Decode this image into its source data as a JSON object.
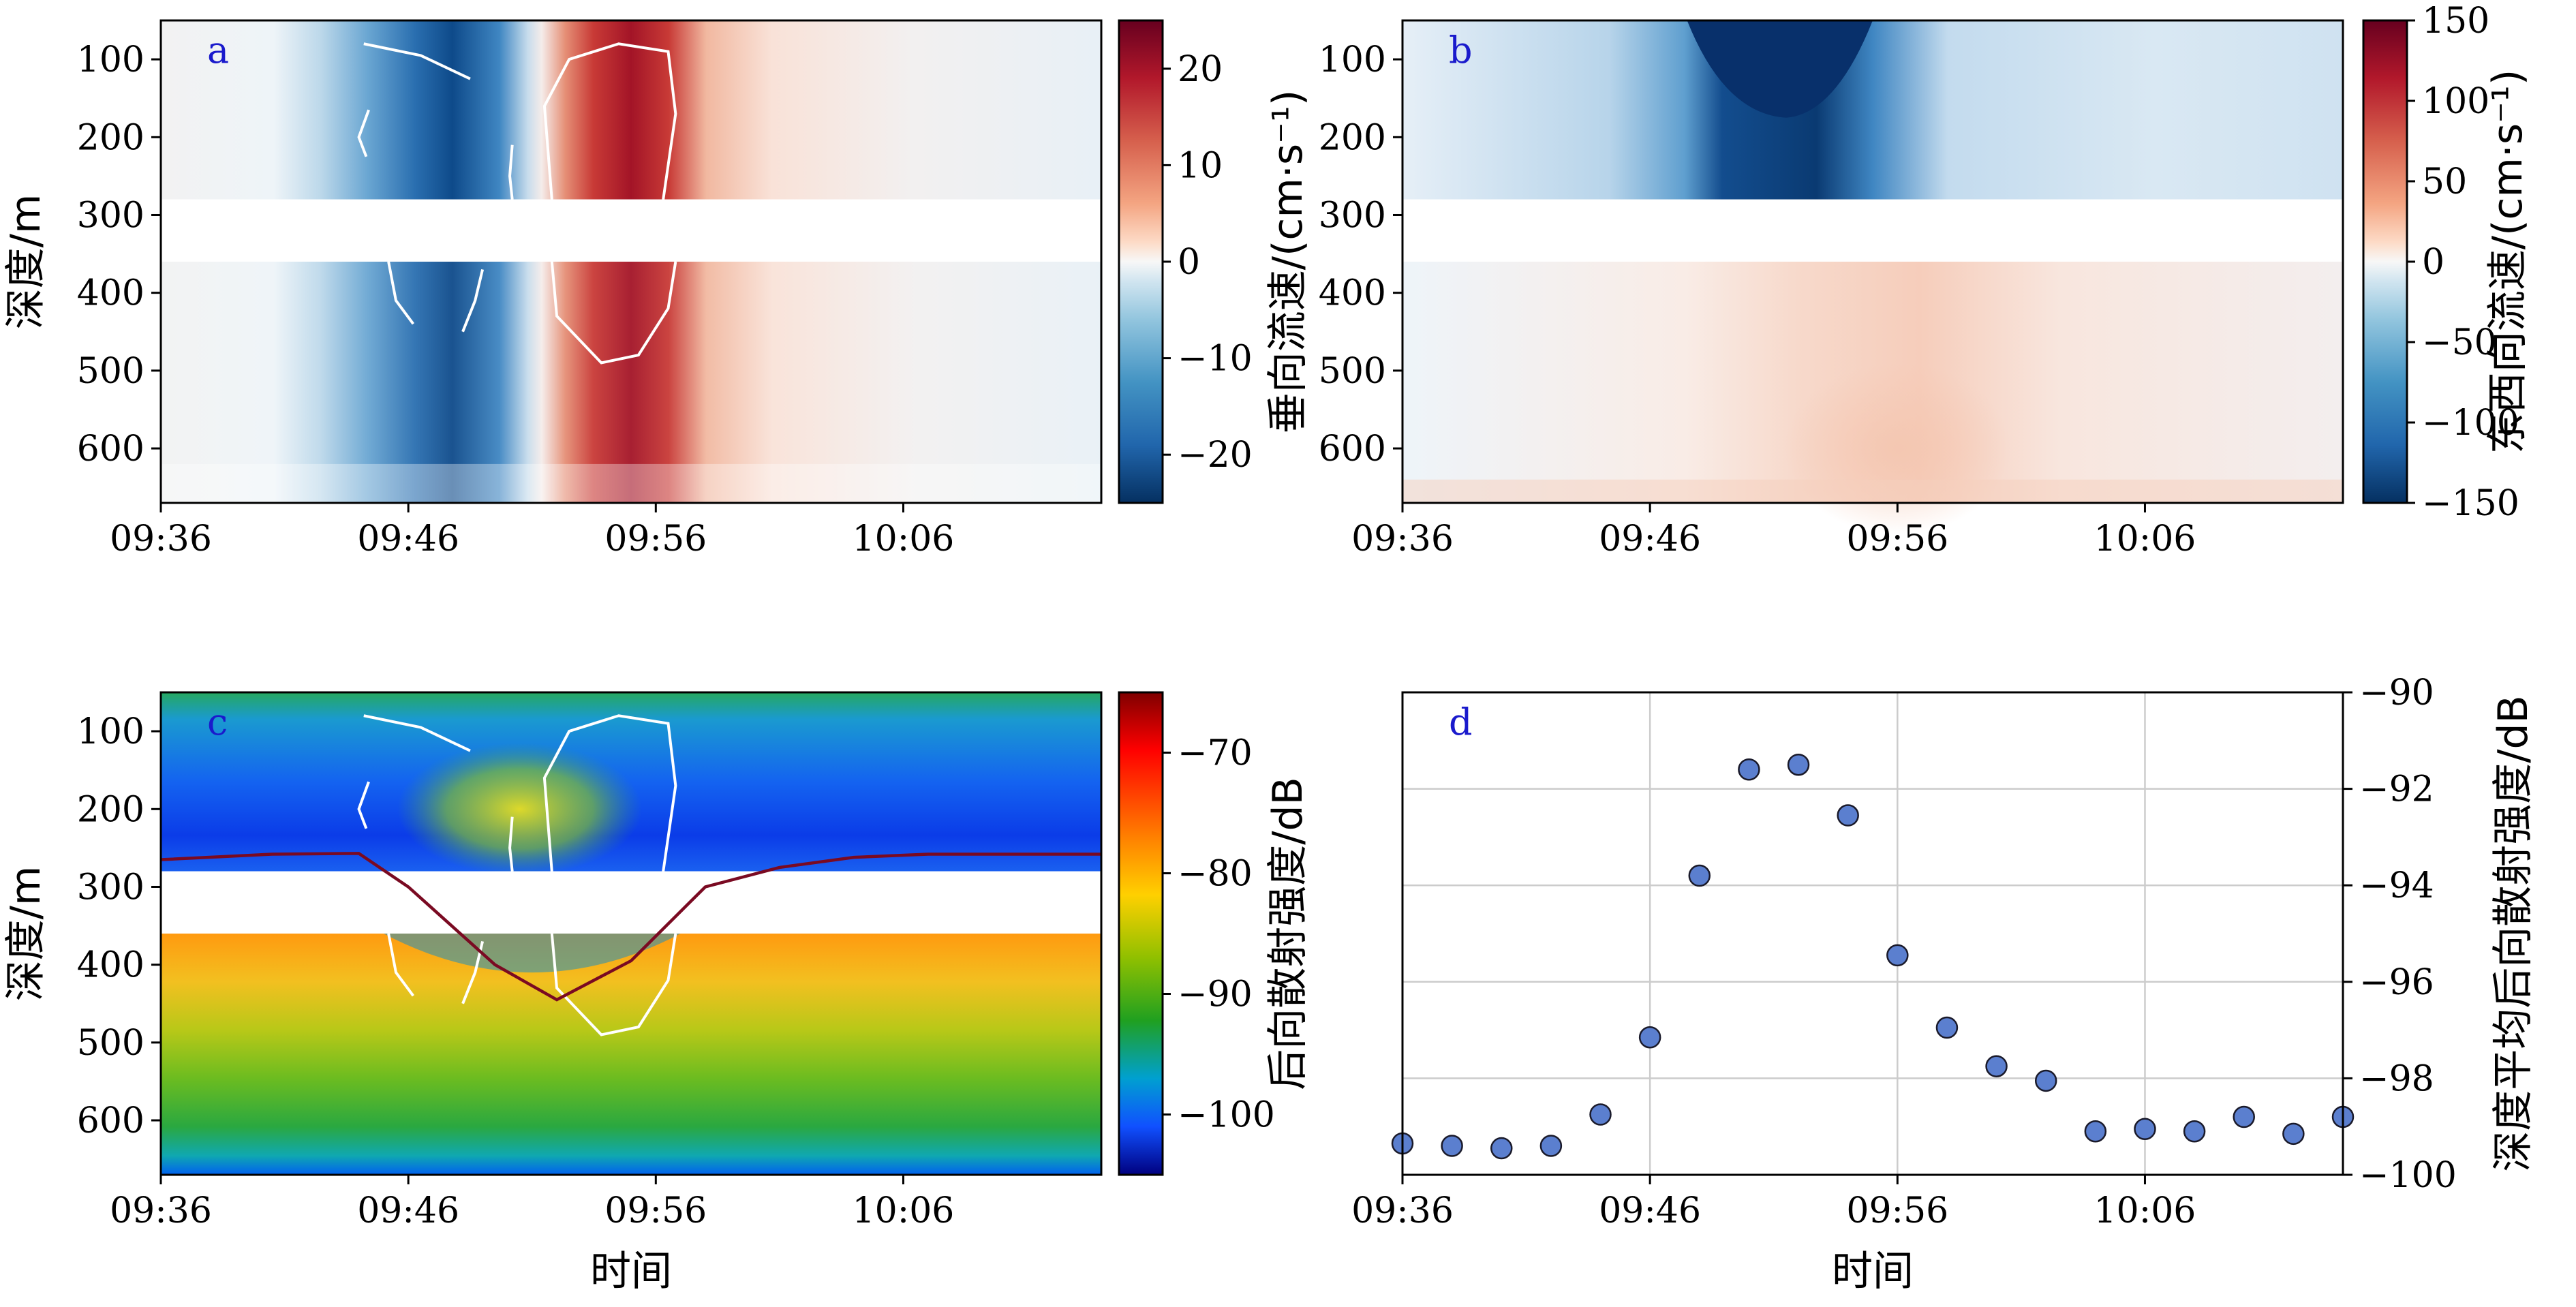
{
  "chart_data": [
    {
      "panel": "a",
      "type": "heatmap",
      "ylabel": "深度/m",
      "xlabel": "",
      "x_ticks": [
        "09:36",
        "09:46",
        "09:56",
        "10:06"
      ],
      "y_ticks": [
        "100",
        "200",
        "300",
        "400",
        "500",
        "600"
      ],
      "xlim_minutes": [
        0,
        38
      ],
      "ylim": [
        670,
        50
      ],
      "data_gap_depth": [
        280,
        360
      ],
      "colorbar": {
        "label": "垂向流速/(cm·s⁻¹)",
        "ticks": [
          "20",
          "10",
          "0",
          "−10",
          "−20"
        ],
        "tick_values": [
          20,
          10,
          0,
          -10,
          -20
        ],
        "range": [
          -25,
          25
        ],
        "colormap": "RdBu_r"
      },
      "features": [
        {
          "type": "minimum",
          "time_min": 11.5,
          "depth": 210,
          "value": -25
        },
        {
          "type": "maximum",
          "time_min": 17.3,
          "depth": 190,
          "value": 25
        },
        {
          "type": "maximum",
          "time_min": 17.5,
          "depth": 420,
          "value": 20
        }
      ]
    },
    {
      "panel": "b",
      "type": "heatmap",
      "ylabel": "",
      "xlabel": "",
      "x_ticks": [
        "09:36",
        "09:46",
        "09:56",
        "10:06"
      ],
      "y_ticks": [
        "100",
        "200",
        "300",
        "400",
        "500",
        "600"
      ],
      "xlim_minutes": [
        0,
        38
      ],
      "ylim": [
        670,
        50
      ],
      "data_gap_depth": [
        280,
        360
      ],
      "colorbar": {
        "label": "东西向流速/(cm·s⁻¹)",
        "ticks": [
          "150",
          "100",
          "50",
          "0",
          "−50",
          "−100",
          "−150"
        ],
        "tick_values": [
          150,
          100,
          50,
          0,
          -50,
          -100,
          -150
        ],
        "range": [
          -150,
          150
        ],
        "colormap": "RdBu_r"
      },
      "features": [
        {
          "type": "minimum",
          "time_min": 15,
          "depth": 100,
          "value": -150
        },
        {
          "type": "maximum",
          "time_min": 20,
          "depth": 640,
          "value": 30
        }
      ]
    },
    {
      "panel": "c",
      "type": "heatmap",
      "ylabel": "深度/m",
      "xlabel": "时间",
      "x_ticks": [
        "09:36",
        "09:46",
        "09:56",
        "10:06"
      ],
      "y_ticks": [
        "100",
        "200",
        "300",
        "400",
        "500",
        "600"
      ],
      "xlim_minutes": [
        0,
        38
      ],
      "ylim": [
        670,
        50
      ],
      "data_gap_depth": [
        280,
        360
      ],
      "colorbar": {
        "label": "后向散射强度/dB",
        "ticks": [
          "−70",
          "−80",
          "−90",
          "−100"
        ],
        "tick_values": [
          -70,
          -80,
          -90,
          -100
        ],
        "range": [
          -105,
          -65
        ],
        "colormap": "jet"
      },
      "isopycnal_line": {
        "time_min": [
          0,
          4.5,
          8,
          10,
          13.5,
          16,
          19,
          22,
          25,
          28,
          31,
          38
        ],
        "depth": [
          265,
          258,
          257,
          300,
          400,
          445,
          395,
          300,
          275,
          262,
          258,
          258
        ]
      }
    },
    {
      "panel": "d",
      "type": "scatter",
      "ylabel": "深度平均后向散射强度/dB",
      "xlabel": "时间",
      "x_ticks": [
        "09:36",
        "09:46",
        "09:56",
        "10:06"
      ],
      "y_ticks": [
        "−90",
        "−92",
        "−94",
        "−96",
        "−98",
        "−100"
      ],
      "ylim": [
        -100,
        -90
      ],
      "xlim_minutes": [
        0,
        38
      ],
      "grid": true,
      "marker_color": "#5b7fcf",
      "x_minutes": [
        0,
        2,
        4,
        6,
        8,
        10,
        12,
        14,
        16,
        18,
        20,
        22,
        24,
        26,
        28,
        30,
        32,
        34,
        36,
        38
      ],
      "y": [
        -99.35,
        -99.4,
        -99.45,
        -99.4,
        -98.75,
        -97.15,
        -93.8,
        -91.6,
        -91.5,
        -92.55,
        -95.45,
        -96.95,
        -97.75,
        -98.05,
        -99.1,
        -99.05,
        -99.1,
        -98.8,
        -99.15,
        -98.8
      ]
    }
  ]
}
